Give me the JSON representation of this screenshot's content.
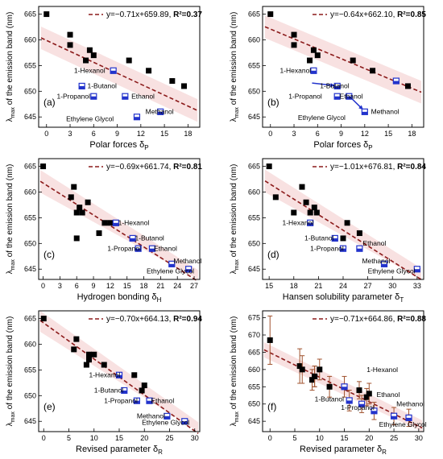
{
  "figure": {
    "y_axis_label": "λmax of the emission band (nm)",
    "x_axis_labels": {
      "a": "Polar forces δP",
      "b": "Polar forces δP",
      "c": "Hydrogen bonding δH",
      "d": "Hansen solubility parameter δT",
      "e": "Revised parameter δR",
      "f": "Revised parameter δR"
    }
  },
  "colors": {
    "black_square": "#000000",
    "blue_square": "#2233cc",
    "fit_line": "#8b1a1a",
    "band": "#f2c9c9",
    "error_bar": "#a0522d"
  },
  "chart_data": [
    {
      "panel": "(a)",
      "type": "scatter",
      "xlabel": "Polar forces δP",
      "ylabel": "λmax of the emission band (nm)",
      "xlim": [
        -1,
        19.5
      ],
      "ylim": [
        643,
        666.5
      ],
      "xticks": [
        0,
        3,
        6,
        9,
        12,
        15,
        18
      ],
      "yticks": [
        645,
        650,
        655,
        660,
        665
      ],
      "fit": {
        "equation": "y=−0.71x+659.89, ",
        "r2": "R²=0.37",
        "slope": -0.71,
        "intercept": 659.89
      },
      "series": [
        {
          "marker": "black",
          "x": [
            0,
            3,
            3,
            5,
            5.5,
            6,
            10.5,
            13,
            16,
            17.5
          ],
          "y": [
            665,
            661,
            659,
            656,
            658,
            657,
            656,
            654,
            652,
            651
          ]
        },
        {
          "marker": "blue",
          "x": [
            8.5,
            4.5,
            6,
            10,
            11.5,
            14.5
          ],
          "y": [
            654,
            651,
            649,
            649,
            645,
            646
          ]
        }
      ],
      "annotations": [
        {
          "text": "1-Hexanol",
          "x": 3.5,
          "y": 653.6
        },
        {
          "text": "1-Butanol",
          "x": 5.2,
          "y": 650.6
        },
        {
          "text": "1-Propanol",
          "x": 1.3,
          "y": 648.6
        },
        {
          "text": "Ethanol",
          "x": 10.8,
          "y": 648.6
        },
        {
          "text": "Methanol",
          "x": 12.6,
          "y": 645.6
        },
        {
          "text": "Ethylene Glycol",
          "x": 2.5,
          "y": 644.2
        }
      ],
      "arrows": []
    },
    {
      "panel": "(b)",
      "type": "scatter",
      "xlabel": "Polar forces δP",
      "ylabel": "λmax of the emission band (nm)",
      "xlim": [
        -1,
        19.5
      ],
      "ylim": [
        643,
        666.5
      ],
      "xticks": [
        0,
        3,
        6,
        9,
        12,
        15,
        18
      ],
      "yticks": [
        645,
        650,
        655,
        660,
        665
      ],
      "fit": {
        "equation": "y=−0.64x+662.10, ",
        "r2": "R²=0.85",
        "slope": -0.64,
        "intercept": 662.1
      },
      "series": [
        {
          "marker": "black",
          "x": [
            0,
            3,
            3,
            5,
            5.5,
            6,
            10.5,
            13,
            16,
            17.5
          ],
          "y": [
            665,
            661,
            659,
            656,
            658,
            657,
            656,
            654,
            652,
            651
          ]
        },
        {
          "marker": "blue",
          "x": [
            5.5,
            8.5,
            8.5,
            10,
            12,
            16
          ],
          "y": [
            654,
            651,
            649,
            649,
            646,
            652
          ]
        }
      ],
      "annotations": [
        {
          "text": "1-Hexanol",
          "x": 1.2,
          "y": 653.6
        },
        {
          "text": "1-Butanol",
          "x": 6.3,
          "y": 650.6
        },
        {
          "text": "1-Propanol",
          "x": 2.3,
          "y": 648.6
        },
        {
          "text": "Ethanol",
          "x": 8.8,
          "y": 648.6
        },
        {
          "text": "Methanol",
          "x": 12.8,
          "y": 645.6
        },
        {
          "text": "Ethylene Glycol",
          "x": 3.5,
          "y": 644.4
        }
      ],
      "arrows": [
        {
          "x1": 5.3,
          "y1": 651.6,
          "x2": 8.2,
          "y2": 651.1
        },
        {
          "x1": 10.2,
          "y1": 648.8,
          "x2": 11.8,
          "y2": 646.4
        }
      ]
    },
    {
      "panel": "(c)",
      "type": "scatter",
      "xlabel": "Hydrogen bonding δH",
      "ylabel": "λmax of the emission band (nm)",
      "xlim": [
        -0.8,
        28
      ],
      "ylim": [
        643,
        666.5
      ],
      "xticks": [
        0,
        3,
        6,
        9,
        12,
        15,
        18,
        21,
        24,
        27
      ],
      "yticks": [
        645,
        650,
        655,
        660,
        665
      ],
      "fit": {
        "equation": "y=−0.69x+661.74, ",
        "r2": "R²=0.81",
        "slope": -0.69,
        "intercept": 661.74
      },
      "series": [
        {
          "marker": "black",
          "x": [
            0,
            5,
            5.5,
            6,
            6.5,
            7,
            8,
            10,
            11,
            12
          ],
          "y": [
            665,
            659,
            661,
            656,
            657,
            656,
            658,
            652,
            654,
            654
          ],
          "extra_x": [
            6
          ],
          "extra_y": [
            651
          ]
        },
        {
          "marker": "blue",
          "x": [
            13,
            16,
            17,
            19.5,
            23,
            26
          ],
          "y": [
            654,
            651,
            649,
            649,
            646,
            645
          ]
        }
      ],
      "annotations": [
        {
          "text": "1-Hexanol",
          "x": 13.4,
          "y": 653.6
        },
        {
          "text": "1-Butanol",
          "x": 16.4,
          "y": 650.6
        },
        {
          "text": "1-Propanol",
          "x": 11.5,
          "y": 648.6
        },
        {
          "text": "Ethanol",
          "x": 19.8,
          "y": 648.6
        },
        {
          "text": "Methanol",
          "x": 23.3,
          "y": 646.1
        },
        {
          "text": "Ethylene Glycol",
          "x": 18.5,
          "y": 644.2
        }
      ],
      "arrows": []
    },
    {
      "panel": "(d)",
      "type": "scatter",
      "xlabel": "Hansen solubility parameter δT",
      "ylabel": "λmax of the emission band (nm)",
      "xlim": [
        14.2,
        33.8
      ],
      "ylim": [
        643,
        666.5
      ],
      "xticks": [
        15,
        18,
        21,
        24,
        27,
        30,
        33
      ],
      "yticks": [
        645,
        650,
        655,
        660,
        665
      ],
      "fit": {
        "equation": "y=−1.01x+676.81, ",
        "r2": "R²=0.84",
        "slope": -1.01,
        "intercept": 676.81
      },
      "series": [
        {
          "marker": "black",
          "x": [
            15,
            15.8,
            18,
            19,
            19.5,
            20,
            20.5,
            20.8,
            24,
            24.5,
            26
          ],
          "y": [
            665,
            659,
            656,
            661,
            658,
            656,
            657,
            656,
            651,
            654,
            652
          ]
        },
        {
          "marker": "blue",
          "x": [
            20,
            23,
            24,
            26,
            29,
            33
          ],
          "y": [
            654,
            651,
            649,
            649,
            646,
            645
          ]
        }
      ],
      "annotations": [
        {
          "text": "1-Hexanol",
          "x": 16.6,
          "y": 653.6
        },
        {
          "text": "1-Butanol",
          "x": 19.3,
          "y": 650.6
        },
        {
          "text": "1-Propanol",
          "x": 20.0,
          "y": 648.6
        },
        {
          "text": "Ethanol",
          "x": 26.4,
          "y": 649.6
        },
        {
          "text": "Methanol",
          "x": 26.3,
          "y": 646.1
        },
        {
          "text": "Ethylene Glycol",
          "x": 27.0,
          "y": 644.2
        }
      ],
      "arrows": []
    },
    {
      "panel": "(e)",
      "type": "scatter",
      "xlabel": "Revised parameter δR",
      "ylabel": "λmax of the emission band (nm)",
      "xlim": [
        -1,
        31
      ],
      "ylim": [
        643,
        666.5
      ],
      "xticks": [
        0,
        5,
        10,
        15,
        20,
        25,
        30
      ],
      "yticks": [
        645,
        650,
        655,
        660,
        665
      ],
      "fit": {
        "equation": "y=−0.70x+664.13, ",
        "r2": "R²=0.94",
        "slope": -0.7,
        "intercept": 664.13
      },
      "series": [
        {
          "marker": "black",
          "x": [
            0,
            6,
            6.5,
            8.5,
            9,
            9,
            10,
            12,
            18,
            19.5,
            20
          ],
          "y": [
            665,
            659,
            661,
            656,
            657,
            658,
            658,
            656,
            654,
            651,
            652
          ]
        },
        {
          "marker": "blue",
          "x": [
            15,
            16,
            18.5,
            21,
            24.5,
            28
          ],
          "y": [
            654,
            651,
            649,
            649,
            646,
            645
          ]
        }
      ],
      "annotations": [
        {
          "text": "1-Hexanol",
          "x": 9.0,
          "y": 653.6
        },
        {
          "text": "1-Butanol",
          "x": 10.0,
          "y": 650.6
        },
        {
          "text": "1-Propanol",
          "x": 12.0,
          "y": 648.6
        },
        {
          "text": "Ethanol",
          "x": 21.3,
          "y": 648.6
        },
        {
          "text": "Methanol",
          "x": 18.5,
          "y": 645.6
        },
        {
          "text": "Ethylene Glycol",
          "x": 19.5,
          "y": 644.3
        }
      ],
      "arrows": []
    },
    {
      "panel": "(f)",
      "type": "scatter",
      "xlabel": "Revised parameter δR",
      "ylabel": "λmax of the emission band (nm)",
      "xlim": [
        -1.5,
        31
      ],
      "ylim": [
        642,
        677
      ],
      "xticks": [
        0,
        5,
        10,
        15,
        20,
        25,
        30
      ],
      "yticks": [
        645,
        650,
        655,
        660,
        665,
        670,
        675
      ],
      "fit": {
        "equation": "y=−0.71x+664.86, ",
        "r2": "R²=0.88",
        "slope": -0.71,
        "intercept": 664.86
      },
      "series": [
        {
          "marker": "black",
          "x": [
            0,
            6,
            6.5,
            8.5,
            9,
            9,
            10,
            12,
            18,
            19.5,
            20
          ],
          "y": [
            668.5,
            661,
            660,
            657,
            658,
            658,
            660,
            655,
            654,
            652,
            653
          ],
          "err": [
            7,
            5,
            4,
            3,
            3,
            3,
            3,
            3,
            2.5,
            2.5,
            3
          ]
        },
        {
          "marker": "blue",
          "x": [
            15,
            16,
            18.5,
            21,
            25,
            28
          ],
          "y": [
            655,
            651,
            650,
            648,
            646.5,
            646
          ],
          "err": [
            3,
            3,
            2.5,
            2.5,
            2.5,
            2.5
          ]
        }
      ],
      "annotations": [
        {
          "text": "1-Hexanol",
          "x": 19.5,
          "y": 659.3
        },
        {
          "text": "1-Butanol",
          "x": 9.0,
          "y": 650.8
        },
        {
          "text": "1-Propanol",
          "x": 14.3,
          "y": 648.3
        },
        {
          "text": "Ethanol",
          "x": 21.5,
          "y": 652.0
        },
        {
          "text": "Methanol",
          "x": 25.5,
          "y": 649.3
        },
        {
          "text": "Ethylene Glycol",
          "x": 22.0,
          "y": 643.4
        }
      ],
      "arrows": []
    }
  ]
}
